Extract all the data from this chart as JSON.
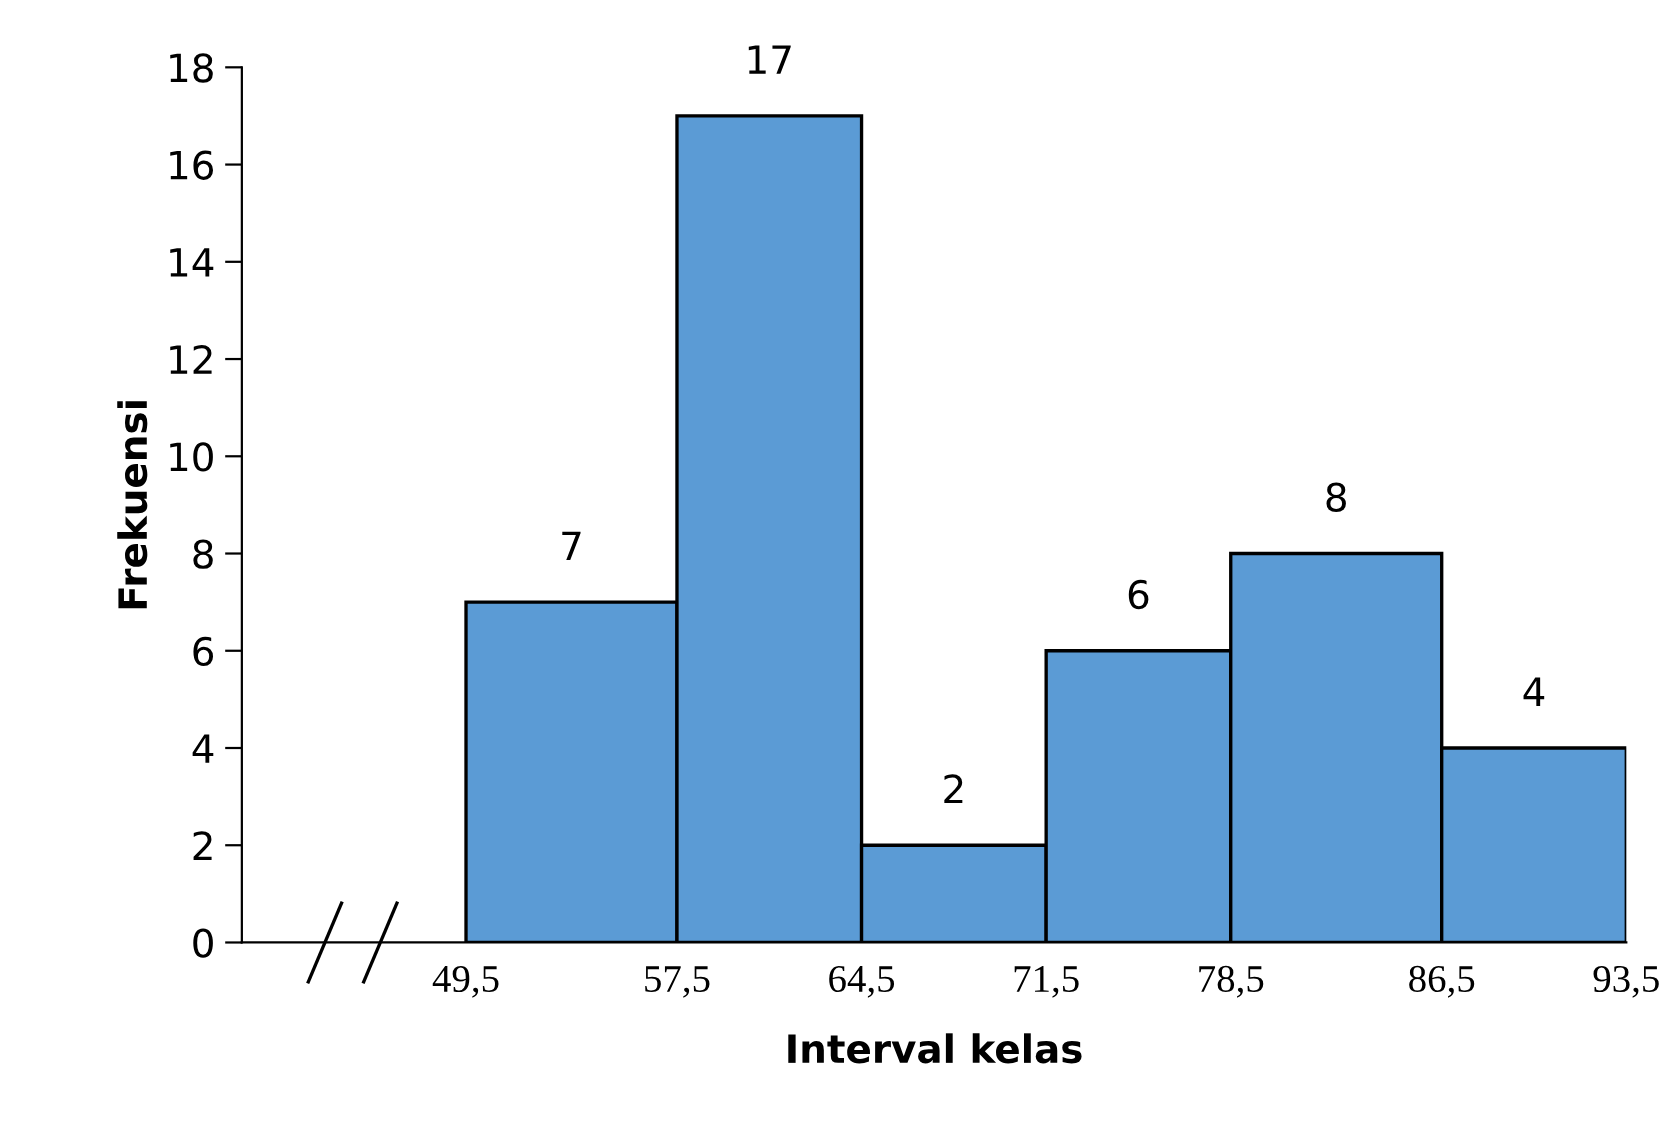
{
  "chart_data": {
    "type": "histogram",
    "xlabel": "Interval kelas",
    "ylabel": "Frekuensi",
    "bins": [
      49.5,
      57.5,
      64.5,
      71.5,
      78.5,
      86.5,
      93.5
    ],
    "values": [
      7,
      17,
      2,
      6,
      8,
      4
    ],
    "color": "#5b9bd5",
    "data_labels": true,
    "xlim": [
      41,
      93.5
    ],
    "xticks": [
      {
        "value": 49.5,
        "label": "49,5"
      },
      {
        "value": 57.5,
        "label": "57,5"
      },
      {
        "value": 64.5,
        "label": "64,5"
      },
      {
        "value": 71.5,
        "label": "71,5"
      },
      {
        "value": 78.5,
        "label": "78,5"
      },
      {
        "value": 86.5,
        "label": "86,5"
      },
      {
        "value": 93.5,
        "label": "93,5"
      }
    ],
    "ylim": [
      0,
      18
    ],
    "yticks": [
      0,
      2,
      4,
      6,
      8,
      10,
      12,
      14,
      16,
      18
    ],
    "grid": false,
    "legend": false
  }
}
